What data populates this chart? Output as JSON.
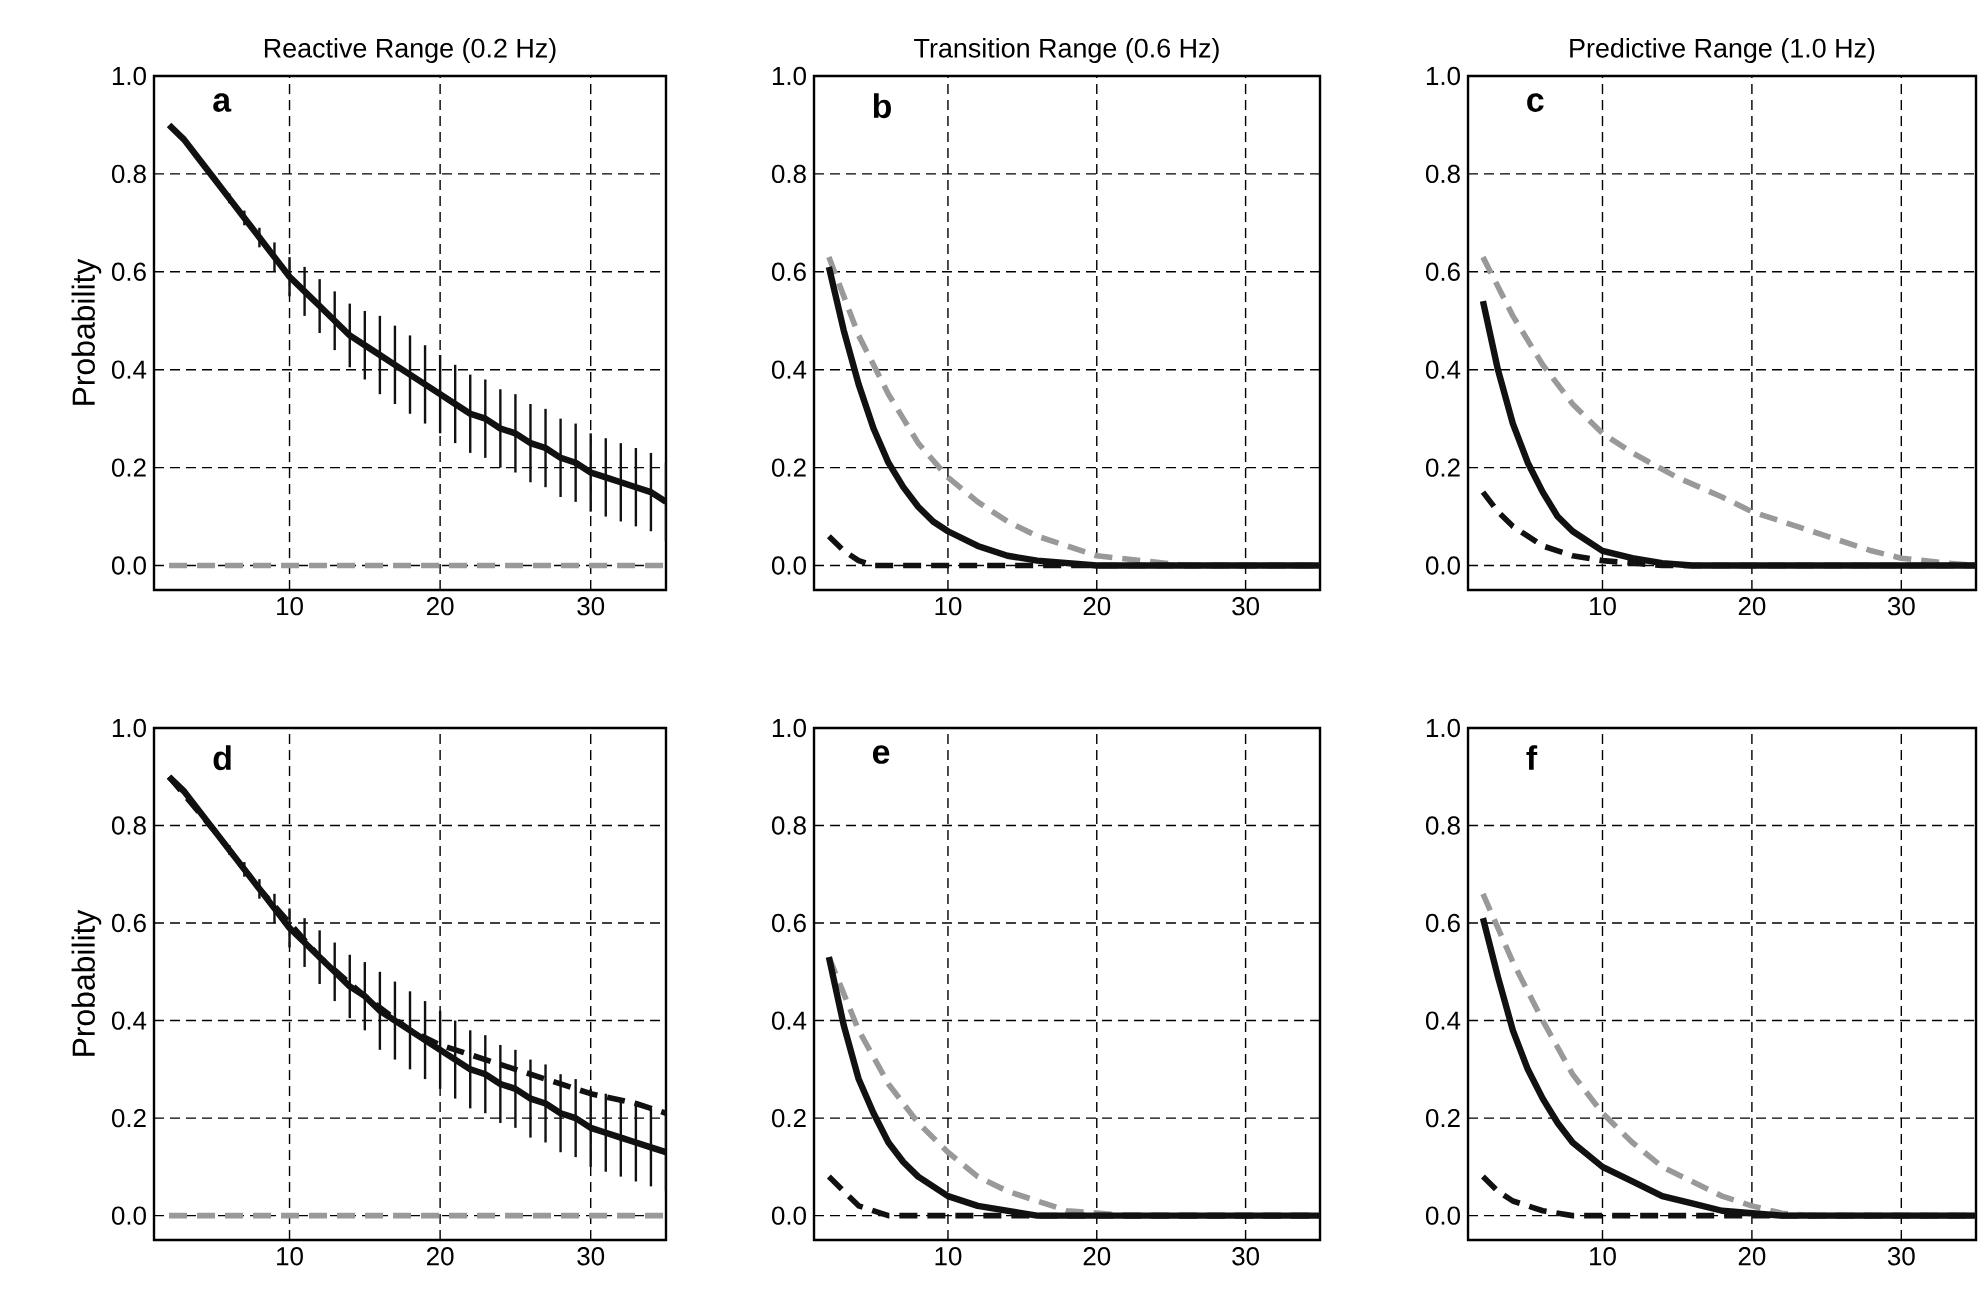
{
  "chart_data": [
    {
      "type": "line",
      "title": "Reactive Range (0.2 Hz)",
      "ylabel": "Probability",
      "annotations": [
        "a"
      ],
      "xlim": [
        1,
        35
      ],
      "ylim": [
        -0.05,
        1
      ],
      "xticks": [
        10,
        20,
        30
      ],
      "yticks": [
        {
          "value": 0,
          "label": "0.0"
        },
        {
          "value": 0.2,
          "label": "0.2"
        },
        {
          "value": 0.4,
          "label": "0.4"
        },
        {
          "value": 0.6,
          "label": "0.6"
        },
        {
          "value": 0.8,
          "label": "0.8"
        },
        {
          "value": 1,
          "label": "1.0"
        }
      ],
      "grid": true,
      "series": [
        {
          "color": "#999999",
          "line_style": "dashed",
          "x": [
            2,
            35
          ],
          "values": [
            0,
            0
          ]
        },
        {
          "color": "#111111",
          "line_style": "solid",
          "x": [
            2,
            3,
            4,
            5,
            6,
            7,
            8,
            9,
            10,
            11,
            12,
            13,
            14,
            15,
            16,
            17,
            18,
            19,
            20,
            21,
            22,
            23,
            24,
            25,
            26,
            27,
            28,
            29,
            30,
            31,
            32,
            33,
            34,
            35
          ],
          "values": [
            0.9,
            0.87,
            0.83,
            0.79,
            0.75,
            0.71,
            0.67,
            0.63,
            0.59,
            0.56,
            0.53,
            0.5,
            0.47,
            0.45,
            0.43,
            0.41,
            0.39,
            0.37,
            0.35,
            0.33,
            0.31,
            0.3,
            0.28,
            0.27,
            0.25,
            0.24,
            0.22,
            0.21,
            0.19,
            0.18,
            0.17,
            0.16,
            0.15,
            0.13
          ],
          "errors": [
            null,
            null,
            null,
            null,
            0.01,
            0.015,
            0.02,
            0.03,
            0.04,
            0.05,
            0.055,
            0.06,
            0.065,
            0.07,
            0.08,
            0.08,
            0.08,
            0.08,
            0.08,
            0.08,
            0.08,
            0.08,
            0.08,
            0.08,
            0.08,
            0.08,
            0.08,
            0.08,
            0.08,
            0.08,
            0.08,
            0.08,
            0.08,
            0.08
          ]
        }
      ]
    },
    {
      "type": "line",
      "title": "Transition Range (0.6 Hz)",
      "annotations": [
        "b"
      ],
      "xlim": [
        1,
        35
      ],
      "ylim": [
        -0.05,
        1
      ],
      "xticks": [
        10,
        20,
        30
      ],
      "yticks": [
        {
          "value": 0,
          "label": "0.0"
        },
        {
          "value": 0.2,
          "label": "0.2"
        },
        {
          "value": 0.4,
          "label": "0.4"
        },
        {
          "value": 0.6,
          "label": "0.6"
        },
        {
          "value": 0.8,
          "label": "0.8"
        },
        {
          "value": 1,
          "label": "1.0"
        }
      ],
      "grid": true,
      "series": [
        {
          "color": "#999999",
          "line_style": "dashed",
          "x": [
            2,
            4,
            6,
            8,
            10,
            12,
            14,
            16,
            18,
            20,
            23,
            26,
            35
          ],
          "values": [
            0.63,
            0.47,
            0.35,
            0.25,
            0.18,
            0.13,
            0.09,
            0.06,
            0.04,
            0.02,
            0.01,
            0,
            0
          ]
        },
        {
          "color": "#111111",
          "line_style": "dashed",
          "x": [
            2,
            3,
            4,
            5,
            35
          ],
          "values": [
            0.06,
            0.03,
            0.01,
            0,
            0
          ]
        },
        {
          "color": "#111111",
          "line_style": "solid",
          "x": [
            2,
            3,
            4,
            5,
            6,
            7,
            8,
            9,
            10,
            12,
            14,
            16,
            20,
            35
          ],
          "values": [
            0.61,
            0.48,
            0.37,
            0.28,
            0.21,
            0.16,
            0.12,
            0.09,
            0.07,
            0.04,
            0.02,
            0.01,
            0,
            0
          ]
        }
      ]
    },
    {
      "type": "line",
      "title": "Predictive Range (1.0 Hz)",
      "annotations": [
        "c"
      ],
      "xlim": [
        1,
        35
      ],
      "ylim": [
        -0.05,
        1
      ],
      "xticks": [
        10,
        20,
        30
      ],
      "yticks": [
        {
          "value": 0,
          "label": "0.0"
        },
        {
          "value": 0.2,
          "label": "0.2"
        },
        {
          "value": 0.4,
          "label": "0.4"
        },
        {
          "value": 0.6,
          "label": "0.6"
        },
        {
          "value": 0.8,
          "label": "0.8"
        },
        {
          "value": 1,
          "label": "1.0"
        }
      ],
      "grid": true,
      "series": [
        {
          "color": "#999999",
          "line_style": "dashed",
          "x": [
            2,
            4,
            6,
            8,
            10,
            12,
            15,
            18,
            20,
            22,
            25,
            28,
            30,
            33,
            35
          ],
          "values": [
            0.63,
            0.51,
            0.41,
            0.33,
            0.27,
            0.23,
            0.18,
            0.14,
            0.11,
            0.09,
            0.06,
            0.03,
            0.015,
            0.005,
            0
          ]
        },
        {
          "color": "#111111",
          "line_style": "dashed",
          "x": [
            2,
            3,
            4,
            6,
            8,
            10,
            12,
            14,
            35
          ],
          "values": [
            0.15,
            0.11,
            0.08,
            0.04,
            0.02,
            0.01,
            0.005,
            0,
            0
          ]
        },
        {
          "color": "#111111",
          "line_style": "solid",
          "x": [
            2,
            3,
            4,
            5,
            6,
            7,
            8,
            10,
            12,
            14,
            16,
            35
          ],
          "values": [
            0.54,
            0.4,
            0.29,
            0.21,
            0.15,
            0.1,
            0.07,
            0.03,
            0.015,
            0.005,
            0,
            0
          ]
        }
      ]
    },
    {
      "type": "line",
      "ylabel": "Probability",
      "annotations": [
        "d"
      ],
      "xlim": [
        1,
        35
      ],
      "ylim": [
        -0.05,
        1
      ],
      "xticks": [
        10,
        20,
        30
      ],
      "yticks": [
        {
          "value": 0,
          "label": "0.0"
        },
        {
          "value": 0.2,
          "label": "0.2"
        },
        {
          "value": 0.4,
          "label": "0.4"
        },
        {
          "value": 0.6,
          "label": "0.6"
        },
        {
          "value": 0.8,
          "label": "0.8"
        },
        {
          "value": 1,
          "label": "1.0"
        }
      ],
      "grid": true,
      "series": [
        {
          "color": "#999999",
          "line_style": "dashed",
          "x": [
            2,
            35
          ],
          "values": [
            0,
            0
          ]
        },
        {
          "color": "#111111",
          "line_style": "dashed",
          "x": [
            2,
            5,
            8,
            10,
            12,
            15,
            18,
            20,
            22,
            25,
            28,
            30,
            33,
            35
          ],
          "values": [
            0.9,
            0.79,
            0.67,
            0.6,
            0.53,
            0.45,
            0.38,
            0.35,
            0.33,
            0.3,
            0.27,
            0.25,
            0.23,
            0.21
          ]
        },
        {
          "color": "#111111",
          "line_style": "solid",
          "x": [
            2,
            3,
            4,
            5,
            6,
            7,
            8,
            9,
            10,
            11,
            12,
            13,
            14,
            15,
            16,
            17,
            18,
            19,
            20,
            21,
            22,
            23,
            24,
            25,
            26,
            27,
            28,
            29,
            30,
            31,
            32,
            33,
            34,
            35
          ],
          "values": [
            0.9,
            0.87,
            0.83,
            0.79,
            0.75,
            0.71,
            0.67,
            0.63,
            0.59,
            0.56,
            0.53,
            0.5,
            0.47,
            0.45,
            0.42,
            0.4,
            0.38,
            0.36,
            0.34,
            0.32,
            0.3,
            0.29,
            0.27,
            0.26,
            0.24,
            0.23,
            0.21,
            0.2,
            0.18,
            0.17,
            0.16,
            0.15,
            0.14,
            0.13
          ],
          "errors": [
            null,
            null,
            null,
            null,
            0.01,
            0.015,
            0.02,
            0.03,
            0.04,
            0.05,
            0.055,
            0.06,
            0.065,
            0.07,
            0.08,
            0.08,
            0.08,
            0.08,
            0.08,
            0.08,
            0.08,
            0.08,
            0.08,
            0.08,
            0.08,
            0.08,
            0.08,
            0.08,
            0.08,
            0.08,
            0.08,
            0.08,
            0.08,
            0.08
          ]
        }
      ]
    },
    {
      "type": "line",
      "annotations": [
        "e"
      ],
      "xlim": [
        1,
        35
      ],
      "ylim": [
        -0.05,
        1
      ],
      "xticks": [
        10,
        20,
        30
      ],
      "yticks": [
        {
          "value": 0,
          "label": "0.0"
        },
        {
          "value": 0.2,
          "label": "0.2"
        },
        {
          "value": 0.4,
          "label": "0.4"
        },
        {
          "value": 0.6,
          "label": "0.6"
        },
        {
          "value": 0.8,
          "label": "0.8"
        },
        {
          "value": 1,
          "label": "1.0"
        }
      ],
      "grid": true,
      "series": [
        {
          "color": "#999999",
          "line_style": "dashed",
          "x": [
            2,
            4,
            6,
            8,
            10,
            12,
            14,
            16,
            18,
            20,
            22,
            35
          ],
          "values": [
            0.53,
            0.38,
            0.27,
            0.19,
            0.13,
            0.08,
            0.05,
            0.03,
            0.01,
            0.005,
            0,
            0
          ]
        },
        {
          "color": "#111111",
          "line_style": "dashed",
          "x": [
            2,
            3,
            4,
            5,
            6,
            35
          ],
          "values": [
            0.08,
            0.05,
            0.02,
            0.01,
            0,
            0
          ]
        },
        {
          "color": "#111111",
          "line_style": "solid",
          "x": [
            2,
            3,
            4,
            5,
            6,
            7,
            8,
            10,
            12,
            14,
            16,
            35
          ],
          "values": [
            0.53,
            0.39,
            0.28,
            0.21,
            0.15,
            0.11,
            0.08,
            0.04,
            0.02,
            0.01,
            0,
            0
          ]
        }
      ]
    },
    {
      "type": "line",
      "annotations": [
        "f"
      ],
      "xlim": [
        1,
        35
      ],
      "ylim": [
        -0.05,
        1
      ],
      "xticks": [
        10,
        20,
        30
      ],
      "yticks": [
        {
          "value": 0,
          "label": "0.0"
        },
        {
          "value": 0.2,
          "label": "0.2"
        },
        {
          "value": 0.4,
          "label": "0.4"
        },
        {
          "value": 0.6,
          "label": "0.6"
        },
        {
          "value": 0.8,
          "label": "0.8"
        },
        {
          "value": 1,
          "label": "1.0"
        }
      ],
      "grid": true,
      "series": [
        {
          "color": "#999999",
          "line_style": "dashed",
          "x": [
            2,
            4,
            6,
            8,
            10,
            12,
            14,
            16,
            18,
            20,
            22,
            24,
            35
          ],
          "values": [
            0.66,
            0.52,
            0.4,
            0.29,
            0.21,
            0.15,
            0.1,
            0.07,
            0.04,
            0.02,
            0.005,
            0,
            0
          ]
        },
        {
          "color": "#111111",
          "line_style": "dashed",
          "x": [
            2,
            3,
            4,
            6,
            8,
            35
          ],
          "values": [
            0.08,
            0.05,
            0.03,
            0.01,
            0,
            0
          ]
        },
        {
          "color": "#111111",
          "line_style": "solid",
          "x": [
            2,
            3,
            4,
            5,
            6,
            7,
            8,
            10,
            12,
            14,
            16,
            18,
            20,
            22,
            35
          ],
          "values": [
            0.61,
            0.49,
            0.38,
            0.3,
            0.24,
            0.19,
            0.15,
            0.1,
            0.07,
            0.04,
            0.025,
            0.01,
            0.005,
            0,
            0
          ]
        }
      ]
    }
  ]
}
